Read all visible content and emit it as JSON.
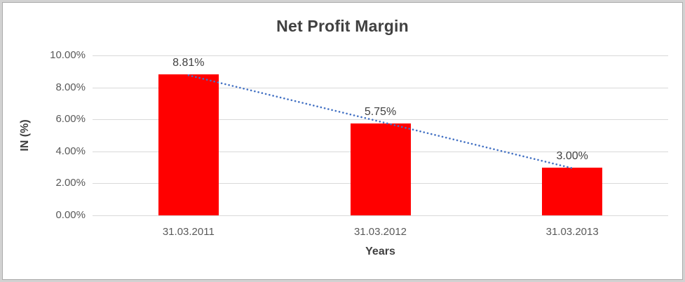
{
  "chart_data": {
    "type": "bar",
    "title": "Net Profit Margin",
    "xlabel": "Years",
    "ylabel": "IN (%)",
    "categories": [
      "31.03.2011",
      "31.03.2012",
      "31.03.2013"
    ],
    "values": [
      8.81,
      5.75,
      3.0
    ],
    "data_labels": [
      "8.81%",
      "5.75%",
      "3.00%"
    ],
    "y_ticks": [
      {
        "value": 0,
        "label": "0.00%"
      },
      {
        "value": 2,
        "label": "2.00%"
      },
      {
        "value": 4,
        "label": "4.00%"
      },
      {
        "value": 6,
        "label": "6.00%"
      },
      {
        "value": 8,
        "label": "8.00%"
      },
      {
        "value": 10,
        "label": "10.00%"
      }
    ],
    "ylim": [
      0,
      10
    ],
    "grid": true,
    "legend": "none",
    "trendline": {
      "type": "linear",
      "style": "dotted",
      "color": "#4472C4",
      "start_value": 8.76,
      "end_value": 2.95
    },
    "colors": {
      "bar": "#FF0000",
      "trendline": "#4472C4",
      "gridline": "#D9D9D9",
      "title_text": "#404040",
      "axis_title_text": "#404040",
      "tick_text": "#595959",
      "background": "#FFFFFF",
      "frame_border": "#D2D2D2"
    }
  }
}
